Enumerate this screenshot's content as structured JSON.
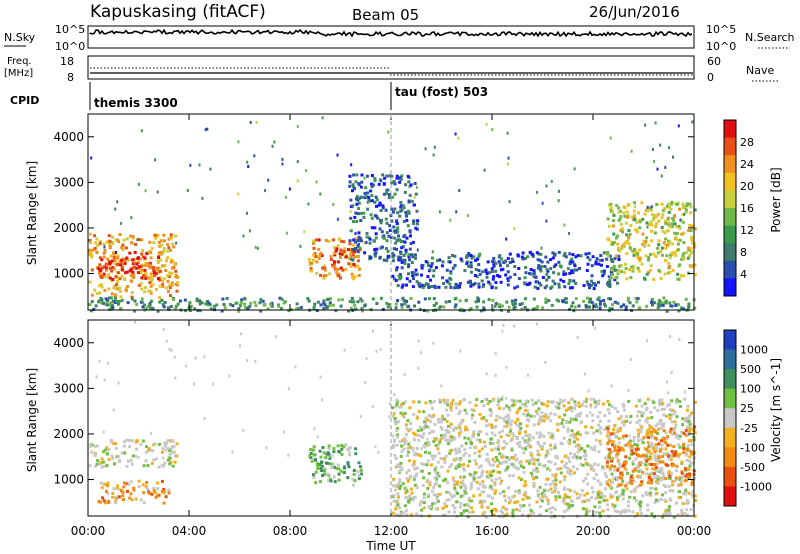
{
  "header": {
    "station": "Kapuskasing (fitACF)",
    "beam": "Beam 05",
    "date": "26/Jun/2016"
  },
  "side_labels": {
    "nsky": "N.Sky",
    "nsearch": "N.Search",
    "freq_top": "Freq.",
    "freq_unit": "[MHz]",
    "nave": "Nave",
    "cpid": "CPID"
  },
  "noise_panel": {
    "left_ticks": [
      "10^5",
      "10^0"
    ],
    "right_ticks": [
      "10^5",
      "10^0"
    ]
  },
  "freq_panel": {
    "left_ticks": [
      "18",
      "8"
    ],
    "right_ticks": [
      "60",
      "0"
    ]
  },
  "cpid_panel": {
    "segments": [
      {
        "label": "themis 3300",
        "start_hour": 0
      },
      {
        "label": "tau (fost) 503",
        "start_hour": 12
      }
    ]
  },
  "chart_data": [
    {
      "type": "heatmap",
      "panel": "power",
      "ylabel": "Slant Range [km]",
      "yticks": [
        1000,
        2000,
        3000,
        4000
      ],
      "ylim": [
        200,
        4500
      ],
      "xlim": [
        0,
        24
      ],
      "colorbar": {
        "label": "Power [dB]",
        "ticks": [
          "4",
          "8",
          "12",
          "16",
          "20",
          "24",
          "28"
        ],
        "colors": [
          "#1414ff",
          "#2a4fae",
          "#3f7a6e",
          "#3c9a4e",
          "#70b84a",
          "#c8d040",
          "#f0c020",
          "#f09020",
          "#e85018",
          "#e01010"
        ]
      },
      "regions": [
        {
          "t0": 0.0,
          "t1": 3.5,
          "r0": 500,
          "r1": 1900,
          "level": 0.7
        },
        {
          "t0": 0.3,
          "t1": 2.8,
          "r0": 900,
          "r1": 1500,
          "level": 0.9
        },
        {
          "t0": 8.7,
          "t1": 10.8,
          "r0": 900,
          "r1": 1800,
          "level": 0.75
        },
        {
          "t0": 9.6,
          "t1": 10.5,
          "r0": 1100,
          "r1": 1600,
          "level": 0.9
        },
        {
          "t0": 10.3,
          "t1": 13.0,
          "r0": 1300,
          "r1": 3200,
          "level": 0.2
        },
        {
          "t0": 12.0,
          "t1": 21.0,
          "r0": 700,
          "r1": 1500,
          "level": 0.15
        },
        {
          "t0": 20.5,
          "t1": 24.0,
          "r0": 900,
          "r1": 2600,
          "level": 0.55
        },
        {
          "t0": 0.0,
          "t1": 24.0,
          "r0": 200,
          "r1": 500,
          "level": 0.3
        }
      ]
    },
    {
      "type": "heatmap",
      "panel": "velocity",
      "ylabel": "Slant Range [km]",
      "yticks": [
        1000,
        2000,
        3000,
        4000
      ],
      "ylim": [
        200,
        4500
      ],
      "xlim": [
        0,
        24
      ],
      "xticks": [
        "00:00",
        "04:00",
        "08:00",
        "12:00",
        "16:00",
        "20:00",
        "00:00"
      ],
      "xlabel": "Time UT",
      "colorbar": {
        "label": "Velocity [m s^-1]",
        "ticks": [
          "1000",
          "500",
          "100",
          "25",
          "-25",
          "-100",
          "-500",
          "-1000"
        ],
        "colors": [
          "#1f3fbf",
          "#2f6f9f",
          "#3f8f5f",
          "#6fc040",
          "#c8c8c8",
          "#f0b020",
          "#f08a10",
          "#e85010",
          "#e01010"
        ]
      },
      "regions": [
        {
          "t0": 0.0,
          "t1": 3.5,
          "r0": 1300,
          "r1": 1900,
          "level": "grey"
        },
        {
          "t0": 0.3,
          "t1": 3.2,
          "r0": 500,
          "r1": 1000,
          "level": "orange"
        },
        {
          "t0": 8.7,
          "t1": 10.8,
          "r0": 900,
          "r1": 1800,
          "level": "green"
        },
        {
          "t0": 12.0,
          "t1": 24.0,
          "r0": 200,
          "r1": 2800,
          "level": "grey"
        },
        {
          "t0": 20.5,
          "t1": 24.0,
          "r0": 900,
          "r1": 2200,
          "level": "orange"
        }
      ]
    }
  ]
}
